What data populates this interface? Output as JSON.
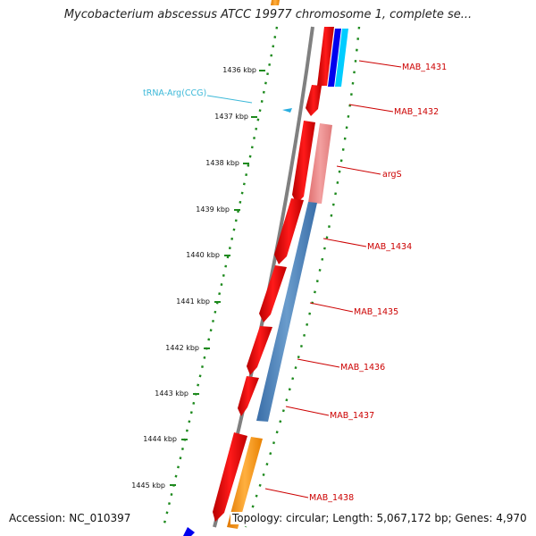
{
  "title": "Mycobacterium abscessus ATCC 19977 chromosome 1, complete se...",
  "footer": {
    "accession": "Accession: NC_010397",
    "summary": "Topology: circular; Length: 5,067,172 bp; Genes: 4,970"
  },
  "ruler": {
    "labels": [
      "1436 kbp",
      "1437 kbp",
      "1438 kbp",
      "1439 kbp",
      "1440 kbp",
      "1441 kbp",
      "1442 kbp",
      "1443 kbp",
      "1444 kbp",
      "1445 kbp"
    ]
  },
  "annotations": {
    "genes": [
      "MAB_1431",
      "MAB_1432",
      "argS",
      "MAB_1434",
      "MAB_1435",
      "MAB_1436",
      "MAB_1437",
      "MAB_1438"
    ],
    "trna": "tRNA-Arg(CCG)"
  },
  "colors": {
    "cds_forward": "#ee0000",
    "cds_light": "#ee8888",
    "reverse_blue": "#4a80b8",
    "orange": "#ff9900",
    "cyan": "#00ccff",
    "blue": "#0000ee",
    "ruler_green": "#1e8a1e",
    "backbone": "#888888",
    "gene_label": "#cc0000",
    "trna_label": "#3bb8d8"
  }
}
